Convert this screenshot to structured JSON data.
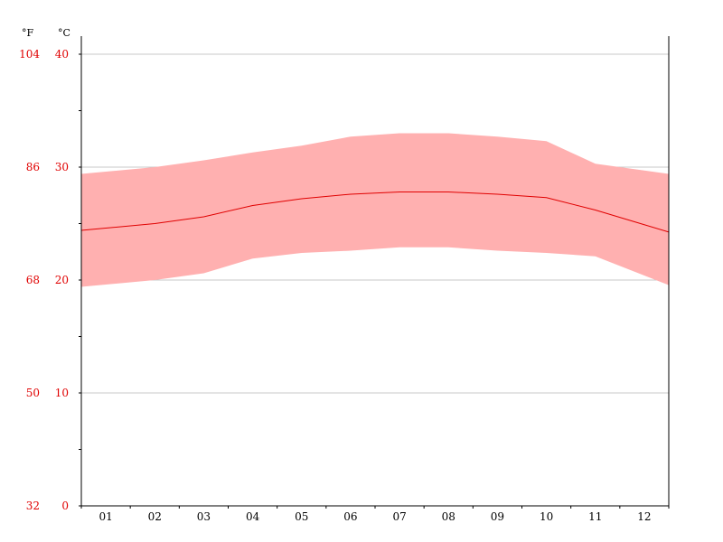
{
  "chart_data": {
    "type": "area",
    "units": {
      "fahrenheit": "°F",
      "celsius": "°C"
    },
    "categories": [
      "01",
      "02",
      "03",
      "04",
      "05",
      "06",
      "07",
      "08",
      "09",
      "10",
      "11",
      "12"
    ],
    "ylim": [
      0,
      40
    ],
    "y_ticks_celsius": [
      0,
      10,
      20,
      30,
      40
    ],
    "y_ticks_fahrenheit": [
      32,
      50,
      68,
      86,
      104
    ],
    "grid": true,
    "series": [
      {
        "role": "range_high",
        "values": [
          29.6,
          30.0,
          30.6,
          31.3,
          31.9,
          32.7,
          33.0,
          33.0,
          32.7,
          32.3,
          30.3,
          29.7
        ],
        "color": "#ffb0b0"
      },
      {
        "role": "mean",
        "values": [
          24.6,
          25.0,
          25.6,
          26.6,
          27.2,
          27.6,
          27.8,
          27.8,
          27.6,
          27.3,
          26.2,
          24.9
        ],
        "color": "#e00000"
      },
      {
        "role": "range_low",
        "values": [
          19.6,
          20.0,
          20.6,
          21.9,
          22.4,
          22.6,
          22.9,
          22.9,
          22.6,
          22.4,
          22.1,
          20.4
        ],
        "color": "#ffb0b0"
      }
    ],
    "colors": {
      "band": "#ffb0b0",
      "mean_line": "#e00000",
      "axis_labels": "#e00000",
      "grid": "#c8c8c8",
      "axis": "#000000"
    }
  }
}
